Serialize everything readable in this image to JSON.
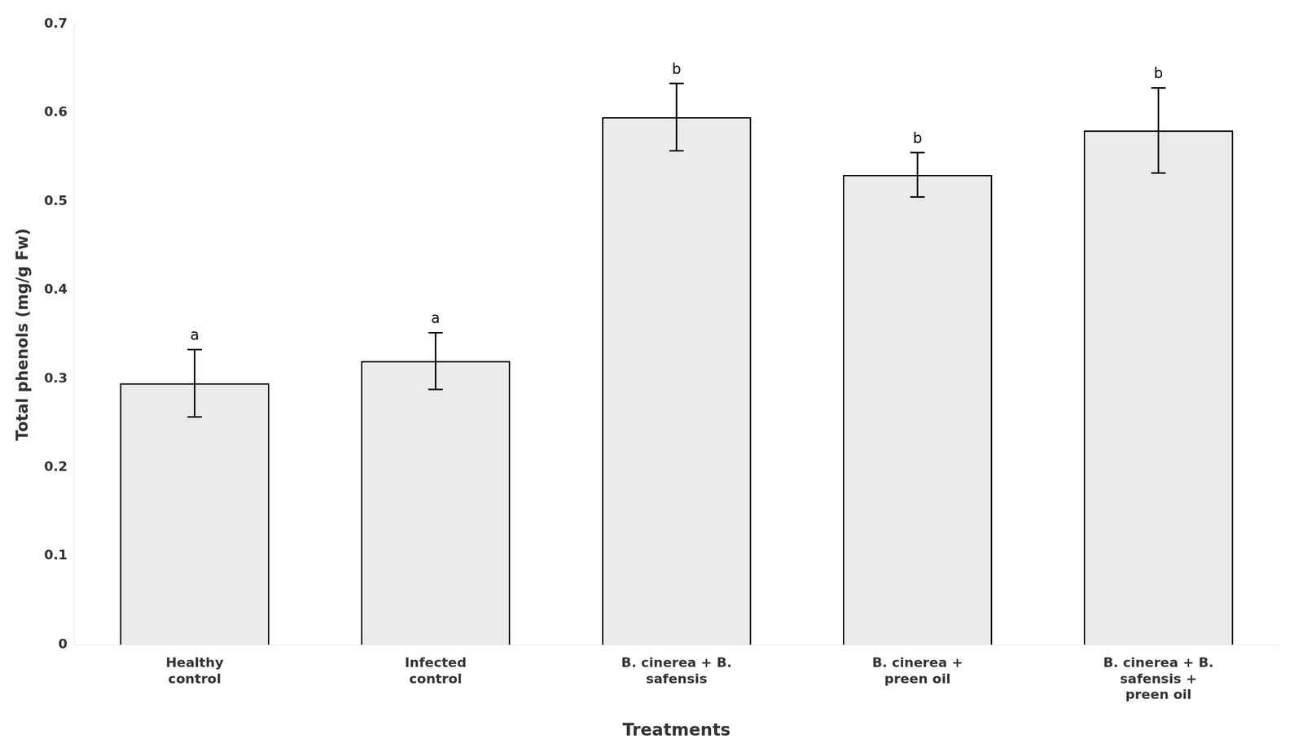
{
  "chart_data": {
    "type": "bar",
    "categories": [
      "Healthy\ncontrol",
      "Infected\ncontrol",
      "B. cinerea + B.\nsafensis",
      "B. cinerea +\npreen oil",
      "B. cinerea + B.\nsafensis +\npreen oil"
    ],
    "values": [
      0.295,
      0.32,
      0.595,
      0.53,
      0.58
    ],
    "errors": [
      0.038,
      0.032,
      0.038,
      0.025,
      0.048
    ],
    "annotations": [
      "a",
      "a",
      "b",
      "b",
      "b"
    ],
    "color": "#ebebeb",
    "xlabel": "Treatments",
    "ylabel": "Total phenols (mg/g Fw)",
    "ylim": [
      0,
      0.7
    ],
    "yticks": [
      0,
      0.1,
      0.2,
      0.3,
      0.4,
      0.5,
      0.6,
      0.7
    ],
    "grid": false
  }
}
